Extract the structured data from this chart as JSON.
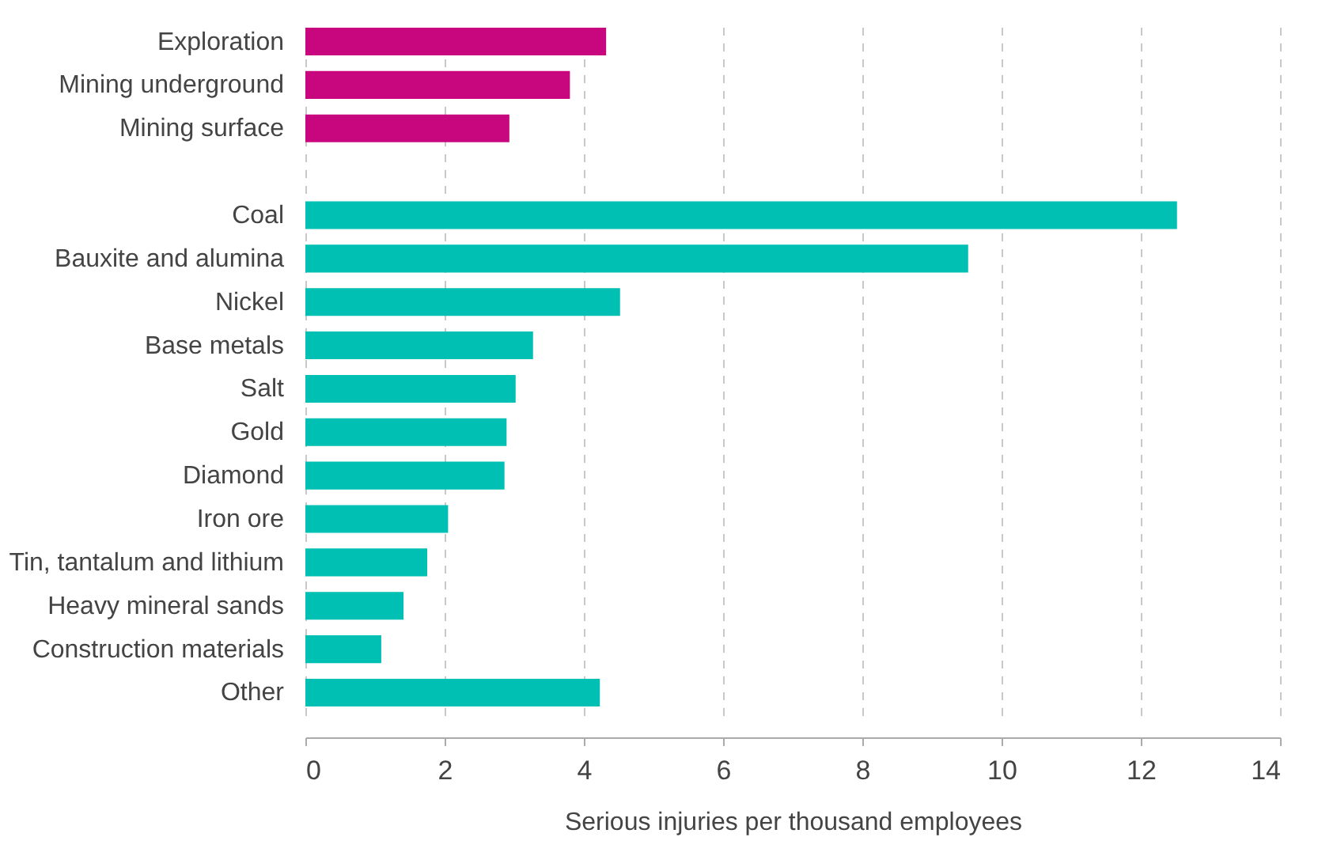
{
  "chart_data": {
    "type": "bar",
    "orientation": "horizontal",
    "xlabel": "Serious injuries per thousand employees",
    "categories": [
      "Exploration",
      "Mining underground",
      "Mining surface",
      null,
      "Coal",
      "Bauxite and alumina",
      "Nickel",
      "Base metals",
      "Salt",
      "Gold",
      "Diamond",
      "Iron ore",
      "Tin, tantalum and lithium",
      "Heavy mineral sands",
      "Construction materials",
      "Other"
    ],
    "values": [
      4.32,
      3.8,
      2.93,
      null,
      12.52,
      9.52,
      4.52,
      3.27,
      3.02,
      2.89,
      2.86,
      2.05,
      1.75,
      1.41,
      1.09,
      4.23
    ],
    "colors": [
      "#c8077f",
      "#c8077f",
      "#c8077f",
      "#c8077f",
      "#00bfb3",
      "#00bfb3",
      "#00bfb3",
      "#00bfb3",
      "#00bfb3",
      "#00bfb3",
      "#00bfb3",
      "#00bfb3",
      "#00bfb3",
      "#00bfb3",
      "#00bfb3",
      "#00bfb3"
    ],
    "xlim": [
      0,
      14
    ],
    "xticks": [
      0,
      2,
      4,
      6,
      8,
      10,
      12,
      14
    ],
    "grid": "x"
  }
}
